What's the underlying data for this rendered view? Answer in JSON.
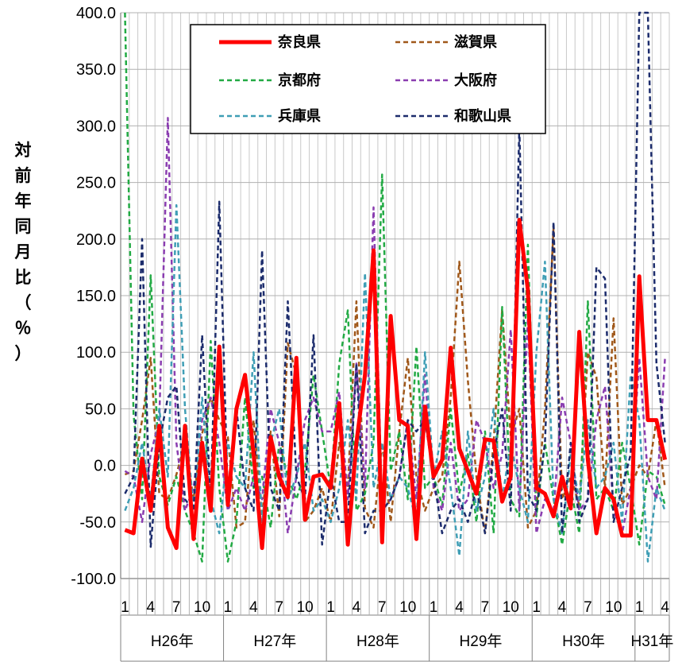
{
  "chart_data": {
    "type": "line",
    "ylabel": "対前年同月比（％）",
    "ylim": [
      -100,
      400
    ],
    "y_ticks": [
      "400.0",
      "350.0",
      "300.0",
      "250.0",
      "200.0",
      "150.0",
      "100.0",
      "50.0",
      "0.0",
      "-50.0",
      "-100.0"
    ],
    "month_tick_labels": [
      "1",
      "4",
      "7",
      "10",
      "1",
      "4",
      "7",
      "10",
      "1",
      "4",
      "7",
      "10",
      "1",
      "4",
      "7",
      "10",
      "1",
      "4",
      "7",
      "10",
      "1",
      "4"
    ],
    "year_labels": [
      "H26年",
      "H27年",
      "H28年",
      "H29年",
      "H30年",
      "H31年"
    ],
    "year_month_counts": [
      12,
      12,
      12,
      12,
      12,
      4
    ],
    "grid": true,
    "legend_position": "top-center",
    "x": [
      1,
      2,
      3,
      4,
      5,
      6,
      7,
      8,
      9,
      10,
      11,
      12,
      13,
      14,
      15,
      16,
      17,
      18,
      19,
      20,
      21,
      22,
      23,
      24,
      25,
      26,
      27,
      28,
      29,
      30,
      31,
      32,
      33,
      34,
      35,
      36,
      37,
      38,
      39,
      40,
      41,
      42,
      43,
      44,
      45,
      46,
      47,
      48,
      49,
      50,
      51,
      52,
      53,
      54,
      55,
      56,
      57,
      58,
      59,
      60,
      61,
      62,
      63,
      64
    ],
    "series": [
      {
        "name": "奈良県",
        "color": "#ff0000",
        "style": "solid",
        "width": 5,
        "values": [
          -57,
          -60,
          6,
          -40,
          35,
          -55,
          -73,
          35,
          -65,
          20,
          -40,
          105,
          -35,
          50,
          80,
          10,
          -73,
          25,
          -10,
          -28,
          95,
          -48,
          -10,
          -8,
          -20,
          55,
          -70,
          20,
          80,
          190,
          -68,
          132,
          40,
          35,
          -65,
          52,
          -10,
          5,
          104,
          15,
          -5,
          -25,
          23,
          22,
          -32,
          -10,
          217,
          155,
          -20,
          -25,
          -45,
          -10,
          -38,
          118,
          5,
          -60,
          -20,
          -30,
          -62,
          -62,
          167,
          40,
          40,
          5
        ]
      },
      {
        "name": "滋賀県",
        "color": "#a0581a",
        "style": "dashed",
        "width": 2.5,
        "values": [
          -8,
          -5,
          40,
          95,
          -25,
          -30,
          -8,
          20,
          -30,
          28,
          60,
          40,
          25,
          -55,
          -50,
          40,
          -45,
          30,
          -45,
          108,
          80,
          -50,
          -40,
          -20,
          -50,
          20,
          -20,
          145,
          -38,
          -55,
          20,
          -50,
          30,
          95,
          -10,
          -40,
          -20,
          -10,
          60,
          180,
          75,
          -10,
          -60,
          20,
          138,
          25,
          50,
          -55,
          -40,
          50,
          210,
          -30,
          -10,
          -35,
          100,
          78,
          -20,
          130,
          -35,
          -20,
          0,
          -10,
          40,
          -20
        ]
      },
      {
        "name": "京都府",
        "color": "#22aa44",
        "style": "dashed",
        "width": 2.5,
        "values": [
          400,
          45,
          -30,
          168,
          -10,
          -35,
          -10,
          -40,
          -60,
          -85,
          110,
          -20,
          -85,
          -50,
          60,
          -20,
          -10,
          -55,
          20,
          -10,
          -30,
          -5,
          80,
          30,
          -20,
          90,
          137,
          -40,
          -25,
          20,
          257,
          -5,
          30,
          -30,
          105,
          -20,
          -10,
          -35,
          50,
          -25,
          10,
          -50,
          30,
          -60,
          140,
          -30,
          -45,
          195,
          -45,
          20,
          -30,
          -70,
          -20,
          -60,
          145,
          -30,
          -20,
          -40,
          20,
          -20,
          -70,
          -5,
          -10,
          -35
        ]
      },
      {
        "name": "大阪府",
        "color": "#8a3db0",
        "style": "dashed",
        "width": 2.5,
        "values": [
          -5,
          -10,
          -50,
          10,
          40,
          307,
          20,
          -40,
          -20,
          40,
          60,
          20,
          -40,
          -20,
          -40,
          -10,
          -30,
          50,
          20,
          -60,
          -10,
          40,
          60,
          30,
          30,
          65,
          -30,
          90,
          -20,
          228,
          -40,
          -30,
          -10,
          40,
          -30,
          80,
          -20,
          -40,
          20,
          -40,
          -30,
          40,
          20,
          -20,
          10,
          120,
          -40,
          130,
          -60,
          -30,
          -40,
          60,
          20,
          -40,
          -30,
          40,
          70,
          -40,
          -60,
          -20,
          95,
          -10,
          -30,
          95
        ]
      },
      {
        "name": "兵庫県",
        "color": "#3f9eb5",
        "style": "dashed",
        "width": 2.5,
        "values": [
          -40,
          -20,
          20,
          -30,
          50,
          -10,
          230,
          50,
          -40,
          60,
          -30,
          -60,
          20,
          -10,
          -20,
          100,
          -50,
          20,
          50,
          -30,
          -10,
          20,
          -40,
          -30,
          -50,
          -20,
          40,
          -30,
          170,
          -20,
          20,
          -30,
          -10,
          -20,
          -50,
          100,
          -10,
          30,
          -20,
          -80,
          30,
          -40,
          -10,
          50,
          -30,
          20,
          -20,
          -50,
          100,
          180,
          -30,
          -60,
          10,
          -30,
          40,
          -20,
          -10,
          20,
          -50,
          80,
          40,
          -85,
          -20,
          -40
        ]
      },
      {
        "name": "和歌山県",
        "color": "#1c2c6c",
        "style": "dashed",
        "width": 2.5,
        "values": [
          -25,
          -10,
          200,
          -72,
          20,
          60,
          70,
          -30,
          -40,
          115,
          -30,
          233,
          -30,
          50,
          -20,
          -40,
          190,
          -20,
          -40,
          145,
          -10,
          -30,
          115,
          -70,
          -10,
          -50,
          -50,
          90,
          -60,
          -40,
          -40,
          -30,
          -10,
          40,
          30,
          40,
          -10,
          -60,
          -40,
          -30,
          -50,
          -20,
          -60,
          10,
          50,
          -40,
          300,
          -25,
          -40,
          20,
          215,
          -60,
          20,
          -50,
          -30,
          175,
          165,
          -50,
          -20,
          10,
          400,
          400,
          90,
          20
        ]
      }
    ]
  }
}
